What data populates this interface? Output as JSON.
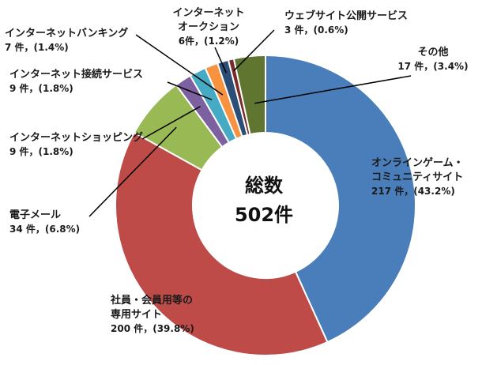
{
  "chart_data": {
    "type": "pie",
    "title": "",
    "center": {
      "line1": "総数",
      "line2": "502件"
    },
    "slices": [
      {
        "name_lines": [
          "オンラインゲーム・",
          "コミュニティサイト"
        ],
        "value_text": "217 件，(43.2%)",
        "value": 217,
        "percent": 43.2,
        "color": "#4a7ebb"
      },
      {
        "name_lines": [
          "社員・会員用等の",
          "専用サイト"
        ],
        "value_text": "200 件，(39.8%)",
        "value": 200,
        "percent": 39.8,
        "color": "#be4b48"
      },
      {
        "name_lines": [
          "電子メール"
        ],
        "value_text": "34 件，(6.8%)",
        "value": 34,
        "percent": 6.8,
        "color": "#98b954"
      },
      {
        "name_lines": [
          "インターネットショッピング"
        ],
        "value_text": "9 件，(1.8%)",
        "value": 9,
        "percent": 1.8,
        "color": "#7d60a0"
      },
      {
        "name_lines": [
          "インターネット接続サービス"
        ],
        "value_text": "9 件，(1.8%)",
        "value": 9,
        "percent": 1.8,
        "color": "#46aac5"
      },
      {
        "name_lines": [
          "インターネットバンキング"
        ],
        "value_text": "7 件，(1.4%)",
        "value": 7,
        "percent": 1.4,
        "color": "#f69240"
      },
      {
        "name_lines": [
          "インターネット",
          "オークション"
        ],
        "value_text": "6件，(1.2%)",
        "value": 6,
        "percent": 1.2,
        "color": "#2c4d75"
      },
      {
        "name_lines": [
          "ウェブサイト公開サービス"
        ],
        "value_text": "3 件，(0.6%)",
        "value": 3,
        "percent": 0.6,
        "color": "#772c2a"
      },
      {
        "name_lines": [
          "その他"
        ],
        "value_text": "17 件，(3.4%)",
        "value": 17,
        "percent": 3.4,
        "color": "#5f7530"
      }
    ]
  }
}
